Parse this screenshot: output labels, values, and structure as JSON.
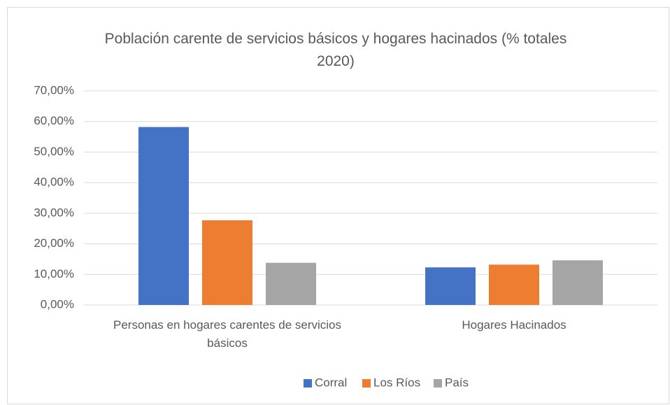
{
  "chart_data": {
    "type": "bar",
    "title": "Población carente de servicios básicos y hogares hacinados (% totales 2020)",
    "categories": [
      "Personas en hogares carentes de servicios básicos",
      "Hogares Hacinados"
    ],
    "series": [
      {
        "name": "Corral",
        "color": "#4472c4",
        "values": [
          58.2,
          12.3
        ]
      },
      {
        "name": "Los Ríos",
        "color": "#ed7d31",
        "values": [
          27.7,
          13.2
        ]
      },
      {
        "name": "País",
        "color": "#a5a5a5",
        "values": [
          13.8,
          14.6
        ]
      }
    ],
    "ylim": [
      0,
      70
    ],
    "yticks": [
      {
        "value": 0,
        "label": "0,00%"
      },
      {
        "value": 10,
        "label": "10,00%"
      },
      {
        "value": 20,
        "label": "20,00%"
      },
      {
        "value": 30,
        "label": "30,00%"
      },
      {
        "value": 40,
        "label": "40,00%"
      },
      {
        "value": 50,
        "label": "50,00%"
      },
      {
        "value": 60,
        "label": "60,00%"
      },
      {
        "value": 70,
        "label": "70,00%"
      }
    ],
    "grid": true,
    "legend": "bottom"
  }
}
